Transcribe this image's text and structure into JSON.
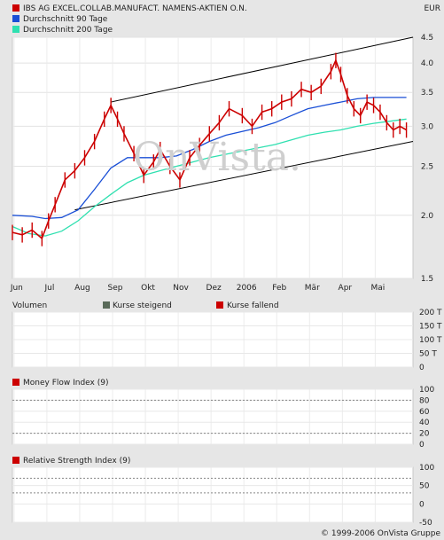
{
  "header": {
    "currency": "EUR"
  },
  "footer": {
    "copyright": "© 1999-2006 OnVista Gruppe"
  },
  "watermark": "OnVista.",
  "chart_data": [
    {
      "type": "line",
      "legend": [
        {
          "label": "IBS AG EXCEL.COLLAB.MANUFACT. NAMENS-AKTIEN O.N.",
          "color": "#cc0000"
        },
        {
          "label": "Durchschnitt 90 Tage",
          "color": "#1a4fd6"
        },
        {
          "label": "Durchschnitt 200 Tage",
          "color": "#2fe0b0"
        }
      ],
      "months": [
        "Jun",
        "Jul",
        "Aug",
        "Sep",
        "Okt",
        "Nov",
        "Dez",
        "2006",
        "Feb",
        "Mär",
        "Apr",
        "Mai"
      ],
      "y_ticks": [
        1.5,
        2.0,
        2.5,
        3.0,
        3.5,
        4.0,
        4.5
      ],
      "y_tick_labels": [
        "1.5",
        "2.0",
        "2.5",
        "3.0",
        "3.5",
        "4.0",
        "4.5"
      ],
      "scale": "log",
      "ylim": [
        1.5,
        4.5
      ],
      "x_range_months": [
        0,
        12.2
      ],
      "series": [
        {
          "name": "IBS AG EXCEL.COLLAB.MANUFACT. NAMENS-AKTIEN O.N.",
          "color": "#cc0000",
          "points": [
            [
              0,
              1.85
            ],
            [
              0.3,
              1.83
            ],
            [
              0.6,
              1.87
            ],
            [
              0.9,
              1.8
            ],
            [
              1.1,
              1.95
            ],
            [
              1.3,
              2.1
            ],
            [
              1.6,
              2.35
            ],
            [
              1.9,
              2.45
            ],
            [
              2.2,
              2.6
            ],
            [
              2.5,
              2.8
            ],
            [
              2.8,
              3.1
            ],
            [
              3.0,
              3.3
            ],
            [
              3.2,
              3.1
            ],
            [
              3.4,
              2.9
            ],
            [
              3.7,
              2.65
            ],
            [
              4.0,
              2.4
            ],
            [
              4.3,
              2.55
            ],
            [
              4.5,
              2.7
            ],
            [
              4.8,
              2.5
            ],
            [
              5.1,
              2.35
            ],
            [
              5.4,
              2.6
            ],
            [
              5.7,
              2.75
            ],
            [
              6.0,
              2.9
            ],
            [
              6.3,
              3.05
            ],
            [
              6.6,
              3.25
            ],
            [
              7.0,
              3.15
            ],
            [
              7.3,
              3.0
            ],
            [
              7.6,
              3.2
            ],
            [
              7.9,
              3.25
            ],
            [
              8.2,
              3.35
            ],
            [
              8.5,
              3.4
            ],
            [
              8.8,
              3.55
            ],
            [
              9.1,
              3.5
            ],
            [
              9.4,
              3.6
            ],
            [
              9.7,
              3.85
            ],
            [
              9.85,
              4.05
            ],
            [
              10.0,
              3.8
            ],
            [
              10.2,
              3.45
            ],
            [
              10.4,
              3.25
            ],
            [
              10.6,
              3.15
            ],
            [
              10.8,
              3.35
            ],
            [
              11.0,
              3.3
            ],
            [
              11.2,
              3.2
            ],
            [
              11.4,
              3.05
            ],
            [
              11.6,
              2.95
            ],
            [
              11.8,
              3.0
            ],
            [
              12.0,
              2.95
            ]
          ]
        },
        {
          "name": "Durchschnitt 90 Tage",
          "color": "#1a4fd6",
          "points": [
            [
              0,
              2.0
            ],
            [
              0.6,
              1.99
            ],
            [
              1.0,
              1.97
            ],
            [
              1.5,
              1.98
            ],
            [
              2.0,
              2.05
            ],
            [
              2.5,
              2.25
            ],
            [
              3.0,
              2.48
            ],
            [
              3.5,
              2.6
            ],
            [
              4.0,
              2.6
            ],
            [
              4.5,
              2.6
            ],
            [
              5.0,
              2.62
            ],
            [
              5.5,
              2.7
            ],
            [
              6.0,
              2.8
            ],
            [
              6.5,
              2.88
            ],
            [
              7.0,
              2.93
            ],
            [
              7.5,
              2.98
            ],
            [
              8.0,
              3.05
            ],
            [
              8.5,
              3.15
            ],
            [
              9.0,
              3.25
            ],
            [
              9.5,
              3.3
            ],
            [
              10.0,
              3.35
            ],
            [
              10.5,
              3.4
            ],
            [
              11.0,
              3.42
            ],
            [
              11.5,
              3.42
            ],
            [
              12.0,
              3.42
            ]
          ]
        },
        {
          "name": "Durchschnitt 200 Tage",
          "color": "#2fe0b0",
          "points": [
            [
              0,
              1.9
            ],
            [
              0.5,
              1.84
            ],
            [
              1.0,
              1.82
            ],
            [
              1.5,
              1.86
            ],
            [
              2.0,
              1.95
            ],
            [
              2.5,
              2.08
            ],
            [
              3.0,
              2.2
            ],
            [
              3.5,
              2.32
            ],
            [
              4.0,
              2.4
            ],
            [
              4.5,
              2.45
            ],
            [
              5.0,
              2.5
            ],
            [
              5.5,
              2.55
            ],
            [
              6.0,
              2.6
            ],
            [
              6.5,
              2.64
            ],
            [
              7.0,
              2.68
            ],
            [
              7.5,
              2.72
            ],
            [
              8.0,
              2.76
            ],
            [
              8.5,
              2.82
            ],
            [
              9.0,
              2.88
            ],
            [
              9.5,
              2.92
            ],
            [
              10.0,
              2.95
            ],
            [
              10.5,
              3.0
            ],
            [
              11.0,
              3.04
            ],
            [
              11.5,
              3.07
            ],
            [
              12.0,
              3.1
            ]
          ]
        }
      ],
      "trend_channel": [
        {
          "from": [
            1.9,
            2.05
          ],
          "to": [
            12.2,
            2.8
          ]
        },
        {
          "from": [
            3.0,
            3.35
          ],
          "to": [
            12.2,
            4.5
          ]
        }
      ]
    },
    {
      "type": "bar",
      "title": "Volumen",
      "legend": [
        {
          "label": "Kurse steigend",
          "color": "#5a6b5a"
        },
        {
          "label": "Kurse fallend",
          "color": "#cc0000"
        }
      ],
      "y_ticks": [
        0,
        50,
        100,
        150,
        200
      ],
      "y_tick_labels": [
        "0",
        "50 T",
        "100 T",
        "150 T",
        "200 T"
      ],
      "ylim": [
        0,
        200
      ]
    },
    {
      "type": "line",
      "title": "Money Flow Index (9)",
      "y_ticks": [
        0,
        20,
        40,
        60,
        80,
        100
      ],
      "y_tick_labels": [
        "0",
        "20",
        "40",
        "60",
        "80",
        "100"
      ],
      "ylim": [
        0,
        100
      ],
      "reference_lines": [
        20,
        80
      ]
    },
    {
      "type": "line",
      "title": "Relative Strength Index (9)",
      "y_ticks": [
        -50,
        0,
        50,
        100
      ],
      "y_tick_labels": [
        "-50",
        "0",
        "50",
        "100"
      ],
      "ylim": [
        -50,
        100
      ],
      "reference_lines": [
        30,
        70
      ]
    }
  ]
}
